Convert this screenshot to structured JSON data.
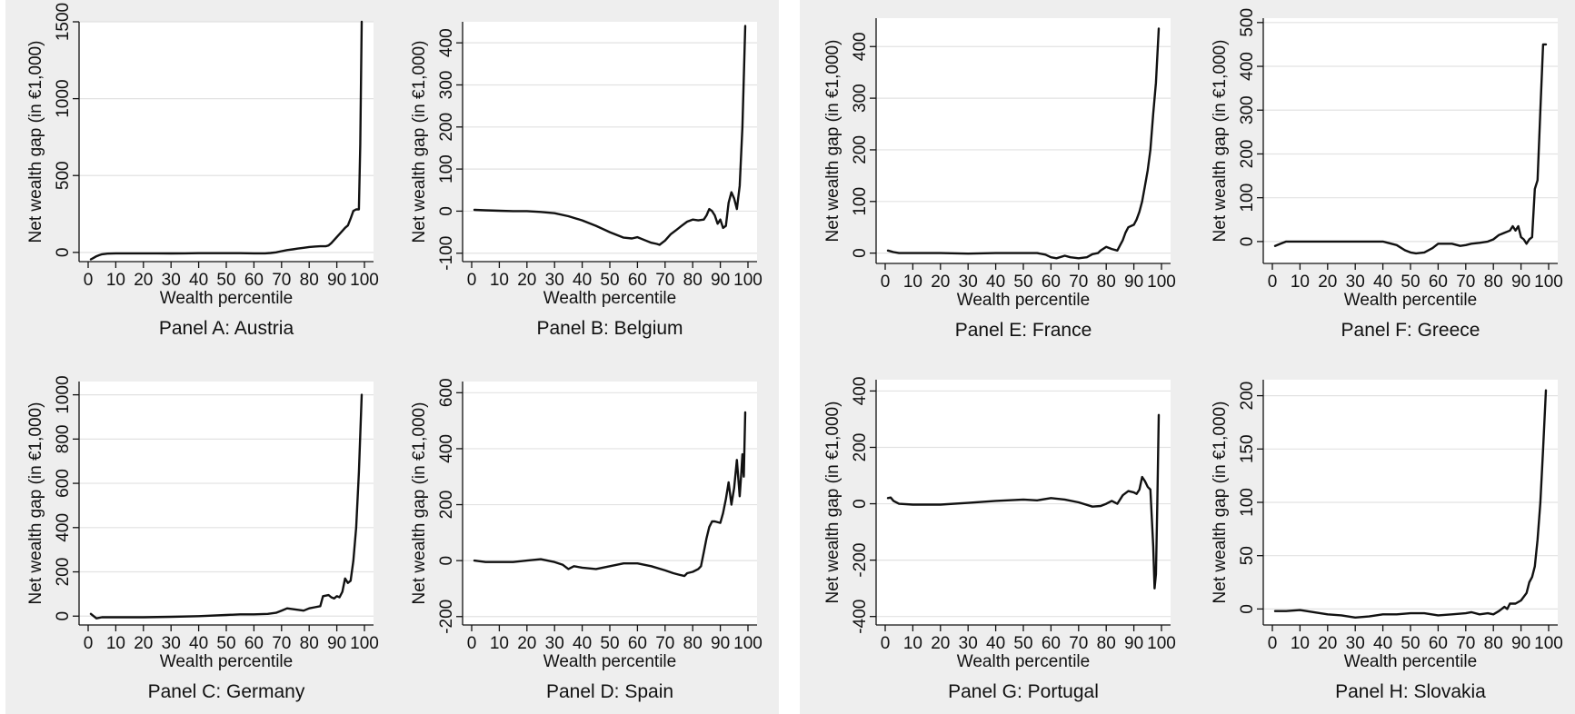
{
  "chart_data": [
    {
      "type": "line",
      "caption": "Panel A: Austria",
      "xlabel": "Wealth percentile",
      "ylabel": "Net wealth gap (in €1,000)",
      "xlim": [
        0,
        100
      ],
      "ylim": [
        -60,
        1500
      ],
      "xticks": [
        0,
        10,
        20,
        30,
        40,
        50,
        60,
        70,
        80,
        90,
        100
      ],
      "yticks": [
        0,
        500,
        1000,
        1500
      ],
      "grid": true,
      "series": [
        {
          "x": [
            1,
            2,
            3,
            4,
            5,
            7,
            10,
            15,
            20,
            25,
            30,
            35,
            40,
            45,
            50,
            55,
            60,
            64,
            66,
            68,
            70,
            72,
            74,
            76,
            78,
            80,
            82,
            84,
            86,
            87,
            88,
            90,
            92,
            93,
            94,
            95,
            96,
            97,
            98,
            98.5,
            99
          ],
          "y": [
            -45,
            -35,
            -25,
            -18,
            -12,
            -8,
            -6,
            -6,
            -6,
            -6,
            -7,
            -6,
            -5,
            -5,
            -5,
            -5,
            -6,
            -6,
            -4,
            0,
            8,
            15,
            20,
            25,
            30,
            35,
            38,
            40,
            40,
            45,
            60,
            100,
            140,
            160,
            175,
            220,
            270,
            280,
            280,
            700,
            1500
          ]
        }
      ]
    },
    {
      "type": "line",
      "caption": "Panel B: Belgium",
      "xlabel": "Wealth percentile",
      "ylabel": "Net wealth gap (in €1,000)",
      "xlim": [
        0,
        100
      ],
      "ylim": [
        -120,
        450
      ],
      "xticks": [
        0,
        10,
        20,
        30,
        40,
        50,
        60,
        70,
        80,
        90,
        100
      ],
      "yticks": [
        -100,
        0,
        100,
        200,
        300,
        400
      ],
      "grid": true,
      "series": [
        {
          "x": [
            1,
            5,
            10,
            15,
            20,
            25,
            30,
            35,
            40,
            45,
            50,
            55,
            58,
            60,
            63,
            65,
            67,
            68,
            70,
            72,
            74,
            76,
            78,
            80,
            82,
            84,
            85,
            86,
            87,
            88,
            89,
            90,
            91,
            92,
            93,
            94,
            95,
            96,
            97,
            98,
            99
          ],
          "y": [
            3,
            2,
            1,
            0,
            0,
            -2,
            -5,
            -12,
            -22,
            -35,
            -50,
            -63,
            -65,
            -62,
            -70,
            -75,
            -78,
            -80,
            -70,
            -55,
            -45,
            -35,
            -25,
            -20,
            -22,
            -20,
            -10,
            5,
            0,
            -10,
            -30,
            -20,
            -40,
            -35,
            20,
            45,
            30,
            5,
            60,
            200,
            440
          ]
        }
      ]
    },
    {
      "type": "line",
      "caption": "Panel C: Germany",
      "xlabel": "Wealth percentile",
      "ylabel": "Net wealth gap (in €1,000)",
      "xlim": [
        0,
        100
      ],
      "ylim": [
        -40,
        1060
      ],
      "xticks": [
        0,
        10,
        20,
        30,
        40,
        50,
        60,
        70,
        80,
        90,
        100
      ],
      "yticks": [
        0,
        200,
        400,
        600,
        800,
        1000
      ],
      "grid": true,
      "series": [
        {
          "x": [
            1,
            2,
            3,
            5,
            10,
            20,
            30,
            40,
            50,
            55,
            60,
            65,
            68,
            70,
            72,
            75,
            78,
            80,
            82,
            84,
            85,
            87,
            88,
            89,
            90,
            91,
            92,
            93,
            94,
            95,
            96,
            97,
            98,
            99
          ],
          "y": [
            10,
            0,
            -10,
            -5,
            -5,
            -5,
            -3,
            0,
            5,
            8,
            8,
            10,
            15,
            25,
            35,
            30,
            25,
            35,
            40,
            45,
            90,
            95,
            85,
            80,
            90,
            85,
            110,
            170,
            150,
            160,
            250,
            400,
            650,
            1000
          ]
        }
      ]
    },
    {
      "type": "line",
      "caption": "Panel D: Spain",
      "xlabel": "Wealth percentile",
      "ylabel": "Net wealth gap (in €1,000)",
      "xlim": [
        0,
        100
      ],
      "ylim": [
        -230,
        640
      ],
      "xticks": [
        0,
        10,
        20,
        30,
        40,
        50,
        60,
        70,
        80,
        90,
        100
      ],
      "yticks": [
        -200,
        0,
        200,
        400,
        600
      ],
      "grid": true,
      "series": [
        {
          "x": [
            1,
            5,
            10,
            15,
            20,
            25,
            30,
            33,
            35,
            37,
            40,
            45,
            50,
            55,
            60,
            65,
            70,
            73,
            75,
            77,
            78,
            80,
            82,
            83,
            84,
            85,
            86,
            87,
            88,
            90,
            91,
            92,
            93,
            94,
            95,
            96,
            97,
            97.5,
            98,
            98.5,
            99
          ],
          "y": [
            0,
            -5,
            -5,
            -5,
            0,
            5,
            -5,
            -15,
            -30,
            -20,
            -25,
            -30,
            -20,
            -10,
            -10,
            -20,
            -35,
            -45,
            -50,
            -55,
            -45,
            -40,
            -30,
            -20,
            30,
            80,
            120,
            140,
            140,
            135,
            170,
            220,
            280,
            200,
            260,
            360,
            230,
            300,
            380,
            300,
            530
          ]
        }
      ]
    },
    {
      "type": "line",
      "caption": "Panel E: France",
      "xlabel": "Wealth percentile",
      "ylabel": "Net wealth gap (in €1,000)",
      "xlim": [
        0,
        100
      ],
      "ylim": [
        -20,
        455
      ],
      "xticks": [
        0,
        10,
        20,
        30,
        40,
        50,
        60,
        70,
        80,
        90,
        100
      ],
      "yticks": [
        0,
        100,
        200,
        300,
        400
      ],
      "grid": true,
      "series": [
        {
          "x": [
            1,
            3,
            5,
            10,
            20,
            30,
            40,
            50,
            55,
            58,
            60,
            62,
            65,
            67,
            70,
            73,
            75,
            77,
            78,
            80,
            82,
            84,
            85,
            86,
            87,
            88,
            90,
            91,
            92,
            93,
            94,
            95,
            96,
            97,
            98,
            99
          ],
          "y": [
            5,
            2,
            0,
            0,
            0,
            -1,
            0,
            0,
            0,
            -3,
            -8,
            -10,
            -5,
            -8,
            -10,
            -8,
            -2,
            0,
            5,
            12,
            8,
            5,
            15,
            25,
            40,
            50,
            55,
            65,
            80,
            100,
            130,
            160,
            200,
            270,
            330,
            435
          ]
        }
      ]
    },
    {
      "type": "line",
      "caption": "Panel F: Greece",
      "xlabel": "Wealth percentile",
      "ylabel": "Net wealth gap (in €1,000)",
      "xlim": [
        0,
        100
      ],
      "ylim": [
        -50,
        510
      ],
      "xticks": [
        0,
        10,
        20,
        30,
        40,
        50,
        60,
        70,
        80,
        90,
        100
      ],
      "yticks": [
        0,
        100,
        200,
        300,
        400,
        500
      ],
      "grid": true,
      "series": [
        {
          "x": [
            1,
            3,
            5,
            10,
            20,
            30,
            40,
            45,
            48,
            50,
            52,
            55,
            58,
            60,
            63,
            65,
            68,
            70,
            72,
            75,
            78,
            80,
            82,
            84,
            86,
            87,
            88,
            89,
            90,
            91,
            92,
            93,
            94,
            95,
            96,
            97,
            98,
            99
          ],
          "y": [
            -10,
            -5,
            0,
            0,
            0,
            0,
            0,
            -8,
            -20,
            -25,
            -27,
            -25,
            -15,
            -5,
            -5,
            -5,
            -10,
            -8,
            -5,
            -3,
            0,
            5,
            15,
            20,
            25,
            35,
            25,
            35,
            10,
            5,
            -5,
            5,
            10,
            120,
            140,
            300,
            450,
            450
          ]
        }
      ]
    },
    {
      "type": "line",
      "caption": "Panel G: Portugal",
      "xlabel": "Wealth percentile",
      "ylabel": "Net wealth gap (in €1,000)",
      "xlim": [
        0,
        100
      ],
      "ylim": [
        -430,
        440
      ],
      "xticks": [
        0,
        10,
        20,
        30,
        40,
        50,
        60,
        70,
        80,
        90,
        100
      ],
      "yticks": [
        -400,
        -200,
        0,
        200,
        400
      ],
      "grid": true,
      "series": [
        {
          "x": [
            1,
            2,
            3,
            5,
            10,
            20,
            30,
            40,
            50,
            55,
            60,
            65,
            70,
            75,
            78,
            80,
            82,
            84,
            86,
            88,
            90,
            91,
            92,
            93,
            94,
            95,
            96,
            97,
            97.5,
            98,
            98.5,
            99
          ],
          "y": [
            20,
            22,
            10,
            0,
            -3,
            -3,
            3,
            10,
            15,
            12,
            20,
            15,
            5,
            -10,
            -8,
            0,
            10,
            0,
            30,
            45,
            40,
            35,
            50,
            95,
            80,
            60,
            50,
            -150,
            -300,
            -250,
            0,
            315
          ]
        }
      ]
    },
    {
      "type": "line",
      "caption": "Panel H: Slovakia",
      "xlabel": "Wealth percentile",
      "ylabel": "Net wealth gap (in €1,000)",
      "xlim": [
        0,
        100
      ],
      "ylim": [
        -15,
        215
      ],
      "xticks": [
        0,
        10,
        20,
        30,
        40,
        50,
        60,
        70,
        80,
        90,
        100
      ],
      "yticks": [
        0,
        50,
        100,
        150,
        200
      ],
      "grid": true,
      "series": [
        {
          "x": [
            1,
            5,
            10,
            15,
            20,
            25,
            30,
            35,
            40,
            45,
            50,
            55,
            60,
            65,
            70,
            72,
            75,
            78,
            80,
            82,
            84,
            85,
            86,
            87,
            88,
            90,
            92,
            93,
            94,
            95,
            96,
            97,
            98,
            99
          ],
          "y": [
            -2,
            -2,
            -1,
            -3,
            -5,
            -6,
            -8,
            -7,
            -5,
            -5,
            -4,
            -4,
            -6,
            -5,
            -4,
            -3,
            -5,
            -4,
            -5,
            -2,
            2,
            0,
            5,
            5,
            5,
            8,
            15,
            25,
            30,
            40,
            65,
            100,
            150,
            205
          ]
        }
      ]
    }
  ]
}
